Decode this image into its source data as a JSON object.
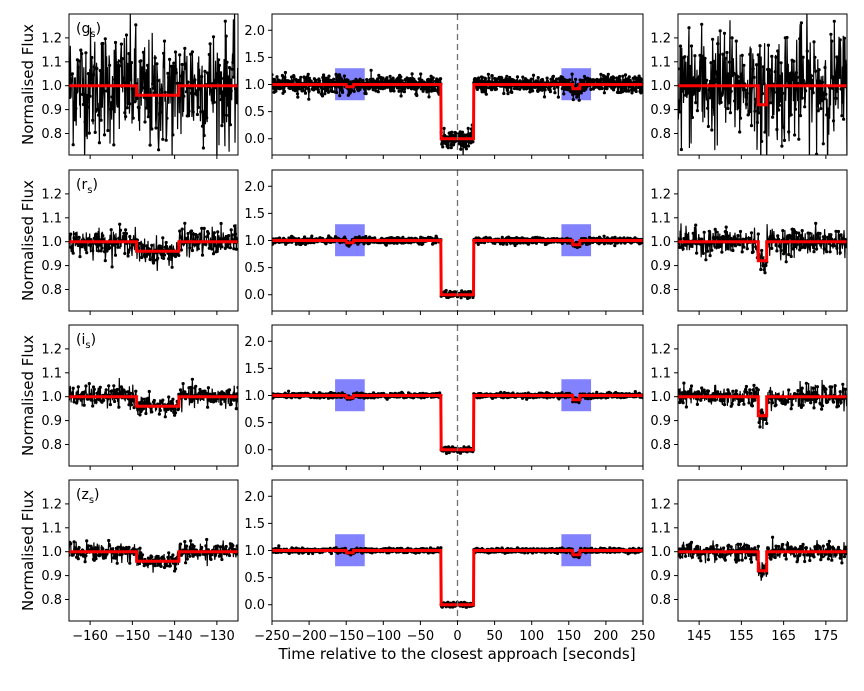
{
  "figure": {
    "xlabel": "Time relative to the closest approach [seconds]",
    "ylabel": "Normalised Flux",
    "colors": {
      "data": "#000000",
      "model": "#ff0000",
      "highlight": "#7b7bff",
      "refline": "#707070"
    }
  },
  "chart_data": {
    "type": "line",
    "title": "",
    "xlabel": "Time relative to the closest approach [seconds]",
    "ylabel": "Normalised Flux",
    "bands": [
      {
        "label": "(g$_s$)",
        "band": "g",
        "noise": 0.12,
        "left_dip_depth": 0.04,
        "right_dip_depth": 0.08
      },
      {
        "label": "(r$_s$)",
        "band": "r",
        "noise": 0.028,
        "left_dip_depth": 0.04,
        "right_dip_depth": 0.08
      },
      {
        "label": "(i$_s$)",
        "band": "i",
        "noise": 0.022,
        "left_dip_depth": 0.04,
        "right_dip_depth": 0.08
      },
      {
        "label": "(z$_s$)",
        "band": "z",
        "noise": 0.02,
        "left_dip_depth": 0.04,
        "right_dip_depth": 0.08
      }
    ],
    "columns": {
      "left": {
        "xlim": [
          -165,
          -125
        ],
        "ylim": [
          0.71,
          1.3
        ],
        "xticks": [
          -160,
          -150,
          -140,
          -130
        ],
        "yticks": [
          0.8,
          0.9,
          1.0,
          1.1,
          1.2
        ],
        "model": {
          "x": [
            -165,
            -149,
            -149,
            -139,
            -139,
            -125
          ],
          "y": [
            1.0,
            1.0,
            0.96,
            0.96,
            1.0,
            1.0
          ]
        }
      },
      "middle": {
        "xlim": [
          -250,
          250
        ],
        "ylim": [
          -0.3,
          2.3
        ],
        "xticks": [
          -250,
          -200,
          -150,
          -100,
          -50,
          0,
          50,
          100,
          150,
          200,
          250
        ],
        "yticks": [
          0.0,
          0.5,
          1.0,
          1.5,
          2.0
        ],
        "model": {
          "x": [
            -250,
            -22,
            -22,
            22,
            22,
            250
          ],
          "y": [
            1.0,
            1.0,
            0.0,
            0.0,
            1.0,
            1.0
          ]
        },
        "dips": [
          {
            "x": -145,
            "depth": 0.04
          },
          {
            "x": 160,
            "depth": 0.08
          }
        ],
        "highlight_boxes": [
          {
            "x": [
              -165,
              -125
            ],
            "y": [
              0.71,
              1.3
            ]
          },
          {
            "x": [
              140,
              180
            ],
            "y": [
              0.71,
              1.3
            ]
          }
        ],
        "refline_x": 0
      },
      "right": {
        "xlim": [
          140,
          180
        ],
        "ylim": [
          0.71,
          1.3
        ],
        "xticks": [
          145,
          155,
          165,
          175
        ],
        "yticks": [
          0.8,
          0.9,
          1.0,
          1.1,
          1.2
        ],
        "model": {
          "x": [
            140,
            159,
            159,
            161,
            161,
            180
          ],
          "y": [
            1.0,
            1.0,
            0.92,
            0.92,
            1.0,
            1.0
          ]
        }
      }
    }
  }
}
